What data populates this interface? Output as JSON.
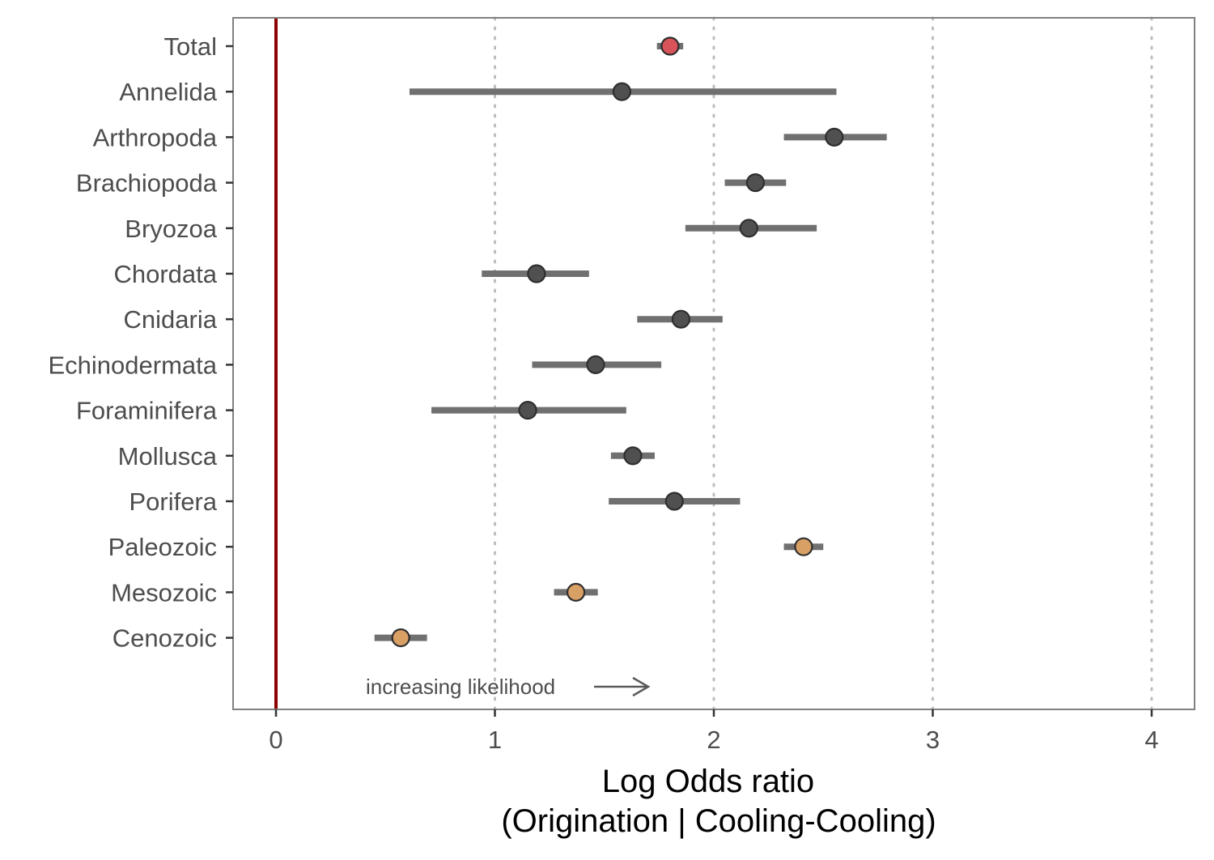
{
  "chart_data": {
    "type": "scatter",
    "subtype": "forest-plot",
    "xlabel_line1": "Log Odds ratio",
    "xlabel_line2": "(Origination | Cooling-Cooling)",
    "ylabel": "",
    "xlim": [
      -0.2,
      4.2
    ],
    "x_ticks": [
      "0",
      "1",
      "2",
      "3",
      "4"
    ],
    "x_tick_values": [
      0,
      1,
      2,
      3,
      4
    ],
    "grid": "vertical dotted at major x ticks",
    "reference_line": {
      "x": 0,
      "color": "#8b0000"
    },
    "annotation": "increasing likelihood",
    "annotation_arrow": "right",
    "colors": {
      "total": "#d9535a",
      "phylum": "#505050",
      "era": "#d9a066",
      "errorbar": "#707070",
      "grid": "#bdbdbd",
      "panel_border": "#808080"
    },
    "categories": [
      "Total",
      "Annelida",
      "Arthropoda",
      "Brachiopoda",
      "Bryozoa",
      "Chordata",
      "Cnidaria",
      "Echinodermata",
      "Foraminifera",
      "Mollusca",
      "Porifera",
      "Paleozoic",
      "Mesozoic",
      "Cenozoic"
    ],
    "points": [
      {
        "label": "Total",
        "estimate": 1.8,
        "lower": 1.74,
        "upper": 1.86,
        "group": "total"
      },
      {
        "label": "Annelida",
        "estimate": 1.58,
        "lower": 0.61,
        "upper": 2.56,
        "group": "phylum"
      },
      {
        "label": "Arthropoda",
        "estimate": 2.55,
        "lower": 2.32,
        "upper": 2.79,
        "group": "phylum"
      },
      {
        "label": "Brachiopoda",
        "estimate": 2.19,
        "lower": 2.05,
        "upper": 2.33,
        "group": "phylum"
      },
      {
        "label": "Bryozoa",
        "estimate": 2.16,
        "lower": 1.87,
        "upper": 2.47,
        "group": "phylum"
      },
      {
        "label": "Chordata",
        "estimate": 1.19,
        "lower": 0.94,
        "upper": 1.43,
        "group": "phylum"
      },
      {
        "label": "Cnidaria",
        "estimate": 1.85,
        "lower": 1.65,
        "upper": 2.04,
        "group": "phylum"
      },
      {
        "label": "Echinodermata",
        "estimate": 1.46,
        "lower": 1.17,
        "upper": 1.76,
        "group": "phylum"
      },
      {
        "label": "Foraminifera",
        "estimate": 1.15,
        "lower": 0.71,
        "upper": 1.6,
        "group": "phylum"
      },
      {
        "label": "Mollusca",
        "estimate": 1.63,
        "lower": 1.53,
        "upper": 1.73,
        "group": "phylum"
      },
      {
        "label": "Porifera",
        "estimate": 1.82,
        "lower": 1.52,
        "upper": 2.12,
        "group": "phylum"
      },
      {
        "label": "Paleozoic",
        "estimate": 2.41,
        "lower": 2.32,
        "upper": 2.5,
        "group": "era"
      },
      {
        "label": "Mesozoic",
        "estimate": 1.37,
        "lower": 1.27,
        "upper": 1.47,
        "group": "era"
      },
      {
        "label": "Cenozoic",
        "estimate": 0.57,
        "lower": 0.45,
        "upper": 0.69,
        "group": "era"
      }
    ]
  }
}
